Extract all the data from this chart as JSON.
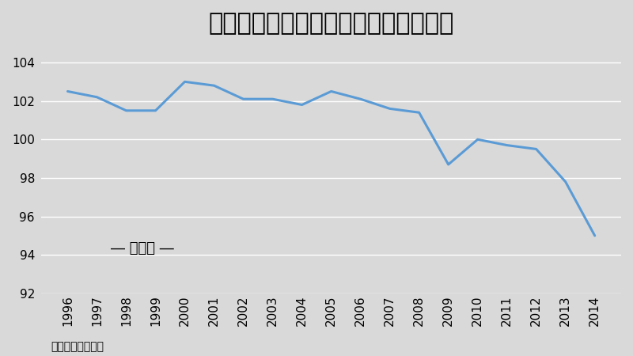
{
  "years": [
    1996,
    1997,
    1998,
    1999,
    2000,
    2001,
    2002,
    2003,
    2004,
    2005,
    2006,
    2007,
    2008,
    2009,
    2010,
    2011,
    2012,
    2013,
    2014
  ],
  "values": [
    102.5,
    102.2,
    101.5,
    101.5,
    103.0,
    102.8,
    102.1,
    102.1,
    101.8,
    102.5,
    102.1,
    101.6,
    101.4,
    98.7,
    100.0,
    99.7,
    99.5,
    97.8,
    95.0
  ],
  "title": "デフレ突入以降の実質賃金指数の推移",
  "legend_label": "― 年平均 ―",
  "source_label": "典拠：厕生労働省",
  "line_color": "#5B9BD5",
  "bg_color": "#D9D9D9",
  "plot_bg_color": "#D9D9D9",
  "ylim": [
    92,
    105
  ],
  "yticks": [
    92,
    94,
    96,
    98,
    100,
    102,
    104
  ],
  "title_fontsize": 22,
  "tick_fontsize": 11,
  "legend_fontsize": 13,
  "source_fontsize": 10,
  "line_width": 2.2
}
